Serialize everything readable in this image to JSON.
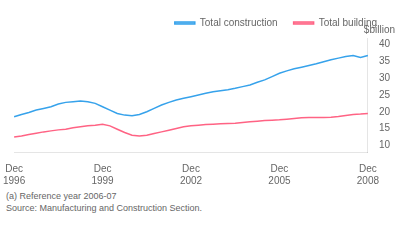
{
  "chart_data": {
    "type": "line",
    "ylabel": "$billion",
    "annotations": [
      "(a) Reference year 2006-07",
      "Source: Manufacturing and Construction Section."
    ],
    "categories": [
      "Dec\n1996",
      null,
      null,
      null,
      null,
      null,
      null,
      null,
      null,
      null,
      null,
      null,
      "Dec\n1999",
      null,
      null,
      null,
      null,
      null,
      null,
      null,
      null,
      null,
      null,
      null,
      "Dec\n2002",
      null,
      null,
      null,
      null,
      null,
      null,
      null,
      null,
      null,
      null,
      null,
      "Dec\n2005",
      null,
      null,
      null,
      null,
      null,
      null,
      null,
      null,
      null,
      null,
      null,
      "Dec\n2008"
    ],
    "series": [
      {
        "name": "Total construction",
        "values": [
          18.5,
          19.2,
          19.8,
          20.5,
          21.0,
          21.5,
          22.3,
          22.8,
          23.0,
          23.2,
          23.0,
          22.5,
          21.5,
          20.5,
          19.5,
          19.0,
          18.8,
          19.2,
          20.0,
          21.0,
          22.0,
          22.8,
          23.5,
          24.0,
          24.5,
          25.0,
          25.5,
          26.0,
          26.3,
          26.6,
          27.0,
          27.5,
          28.0,
          28.8,
          29.5,
          30.5,
          31.5,
          32.2,
          32.8,
          33.3,
          33.8,
          34.3,
          34.9,
          35.5,
          36.0,
          36.5,
          36.8,
          36.2,
          36.8
        ]
      },
      {
        "name": "Total building",
        "values": [
          12.5,
          12.8,
          13.2,
          13.6,
          14.0,
          14.3,
          14.6,
          14.8,
          15.2,
          15.5,
          15.8,
          16.0,
          16.3,
          15.8,
          14.8,
          13.8,
          13.0,
          12.8,
          13.0,
          13.5,
          14.0,
          14.5,
          15.0,
          15.5,
          15.8,
          16.0,
          16.2,
          16.3,
          16.4,
          16.5,
          16.6,
          16.8,
          17.0,
          17.2,
          17.4,
          17.5,
          17.6,
          17.8,
          18.0,
          18.2,
          18.3,
          18.3,
          18.3,
          18.4,
          18.6,
          18.9,
          19.2,
          19.3,
          19.5
        ]
      }
    ],
    "ylim": [
      8,
      42
    ],
    "yticks": [
      10,
      15,
      20,
      25,
      30,
      35,
      40
    ],
    "grid": false,
    "legend": "upper right"
  }
}
